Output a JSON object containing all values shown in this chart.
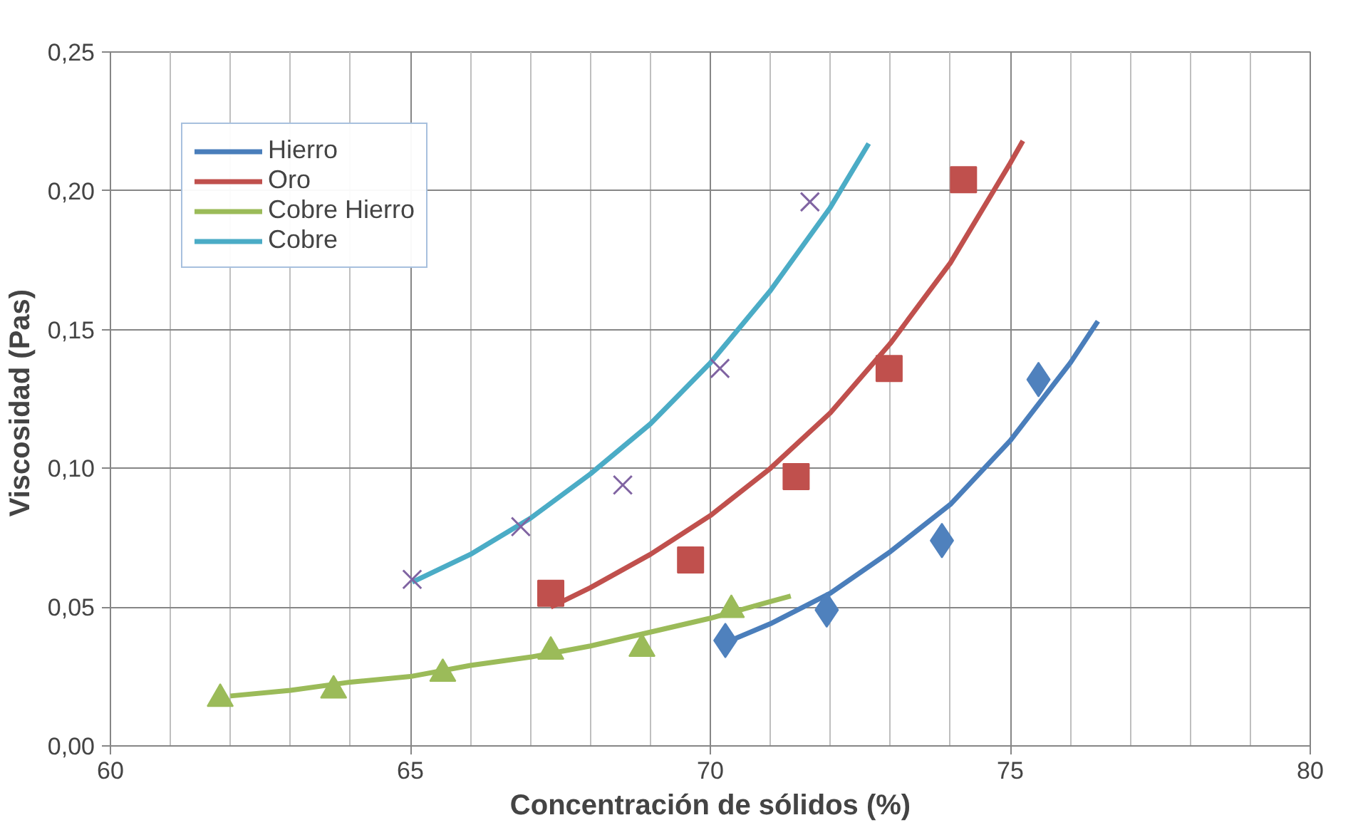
{
  "chart_data": {
    "type": "scatter",
    "xlabel": "Concentración de sólidos (%)",
    "ylabel": "Viscosidad  (Pas)",
    "xlim": [
      60,
      80
    ],
    "xticks": [
      60,
      65,
      70,
      75,
      80
    ],
    "ylim": [
      0,
      0.25
    ],
    "yticks": [
      {
        "value": 0,
        "label": "0,00"
      },
      {
        "value": 0.05,
        "label": "0,05"
      },
      {
        "value": 0.1,
        "label": "0,10"
      },
      {
        "value": 0.15,
        "label": "0,15"
      },
      {
        "value": 0.2,
        "label": "0,20"
      },
      {
        "value": 0.25,
        "label": "0,25"
      }
    ],
    "grid": true,
    "legend": "top left",
    "series": [
      {
        "type": "line",
        "name": "Hierro",
        "color": "#4a7ebb",
        "marker": "none",
        "x": [
          70.23,
          71,
          72,
          73,
          74,
          75,
          76,
          76.46
        ],
        "values": [
          0.037,
          0.044,
          0.055,
          0.07,
          0.087,
          0.11,
          0.138,
          0.153
        ]
      },
      {
        "type": "line",
        "name": "Oro",
        "color": "#c0504d",
        "marker": "none",
        "x": [
          67.34,
          68,
          69,
          70,
          71,
          72,
          73,
          74,
          75,
          75.21
        ],
        "values": [
          0.05,
          0.057,
          0.069,
          0.083,
          0.1,
          0.12,
          0.145,
          0.174,
          0.21,
          0.218
        ]
      },
      {
        "type": "line",
        "name": "Cobre Hierro",
        "color": "#9bbb59",
        "marker": "none",
        "x": [
          62,
          63,
          64,
          65,
          66,
          67,
          68,
          69,
          70,
          71,
          71.34
        ],
        "values": [
          0.018,
          0.02,
          0.023,
          0.025,
          0.029,
          0.032,
          0.036,
          0.041,
          0.046,
          0.052,
          0.054
        ]
      },
      {
        "type": "line",
        "name": "Cobre",
        "color": "#4bacc6",
        "marker": "none",
        "x": [
          65.03,
          66,
          67,
          68,
          69,
          70,
          71,
          72,
          72.64
        ],
        "values": [
          0.059,
          0.069,
          0.082,
          0.098,
          0.116,
          0.138,
          0.164,
          0.194,
          0.217
        ]
      },
      {
        "color": "#4f81bd",
        "marker": "diamond",
        "x": [
          70.25,
          71.94,
          73.86,
          75.47
        ],
        "values": [
          0.038,
          0.049,
          0.074,
          0.132
        ]
      },
      {
        "color": "#c0504d",
        "marker": "square",
        "x": [
          67.34,
          69.67,
          71.43,
          72.98,
          74.22
        ],
        "values": [
          0.055,
          0.067,
          0.097,
          0.136,
          0.204
        ]
      },
      {
        "color": "#9bbb59",
        "marker": "triangle",
        "x": [
          61.83,
          63.72,
          65.54,
          67.34,
          68.86,
          70.35
        ],
        "values": [
          0.017,
          0.02,
          0.026,
          0.034,
          0.035,
          0.049
        ]
      },
      {
        "color": "#8064a2",
        "marker": "cross",
        "x": [
          65.03,
          66.84,
          68.54,
          70.16,
          71.66
        ],
        "values": [
          0.06,
          0.079,
          0.094,
          0.136,
          0.196
        ]
      }
    ]
  }
}
